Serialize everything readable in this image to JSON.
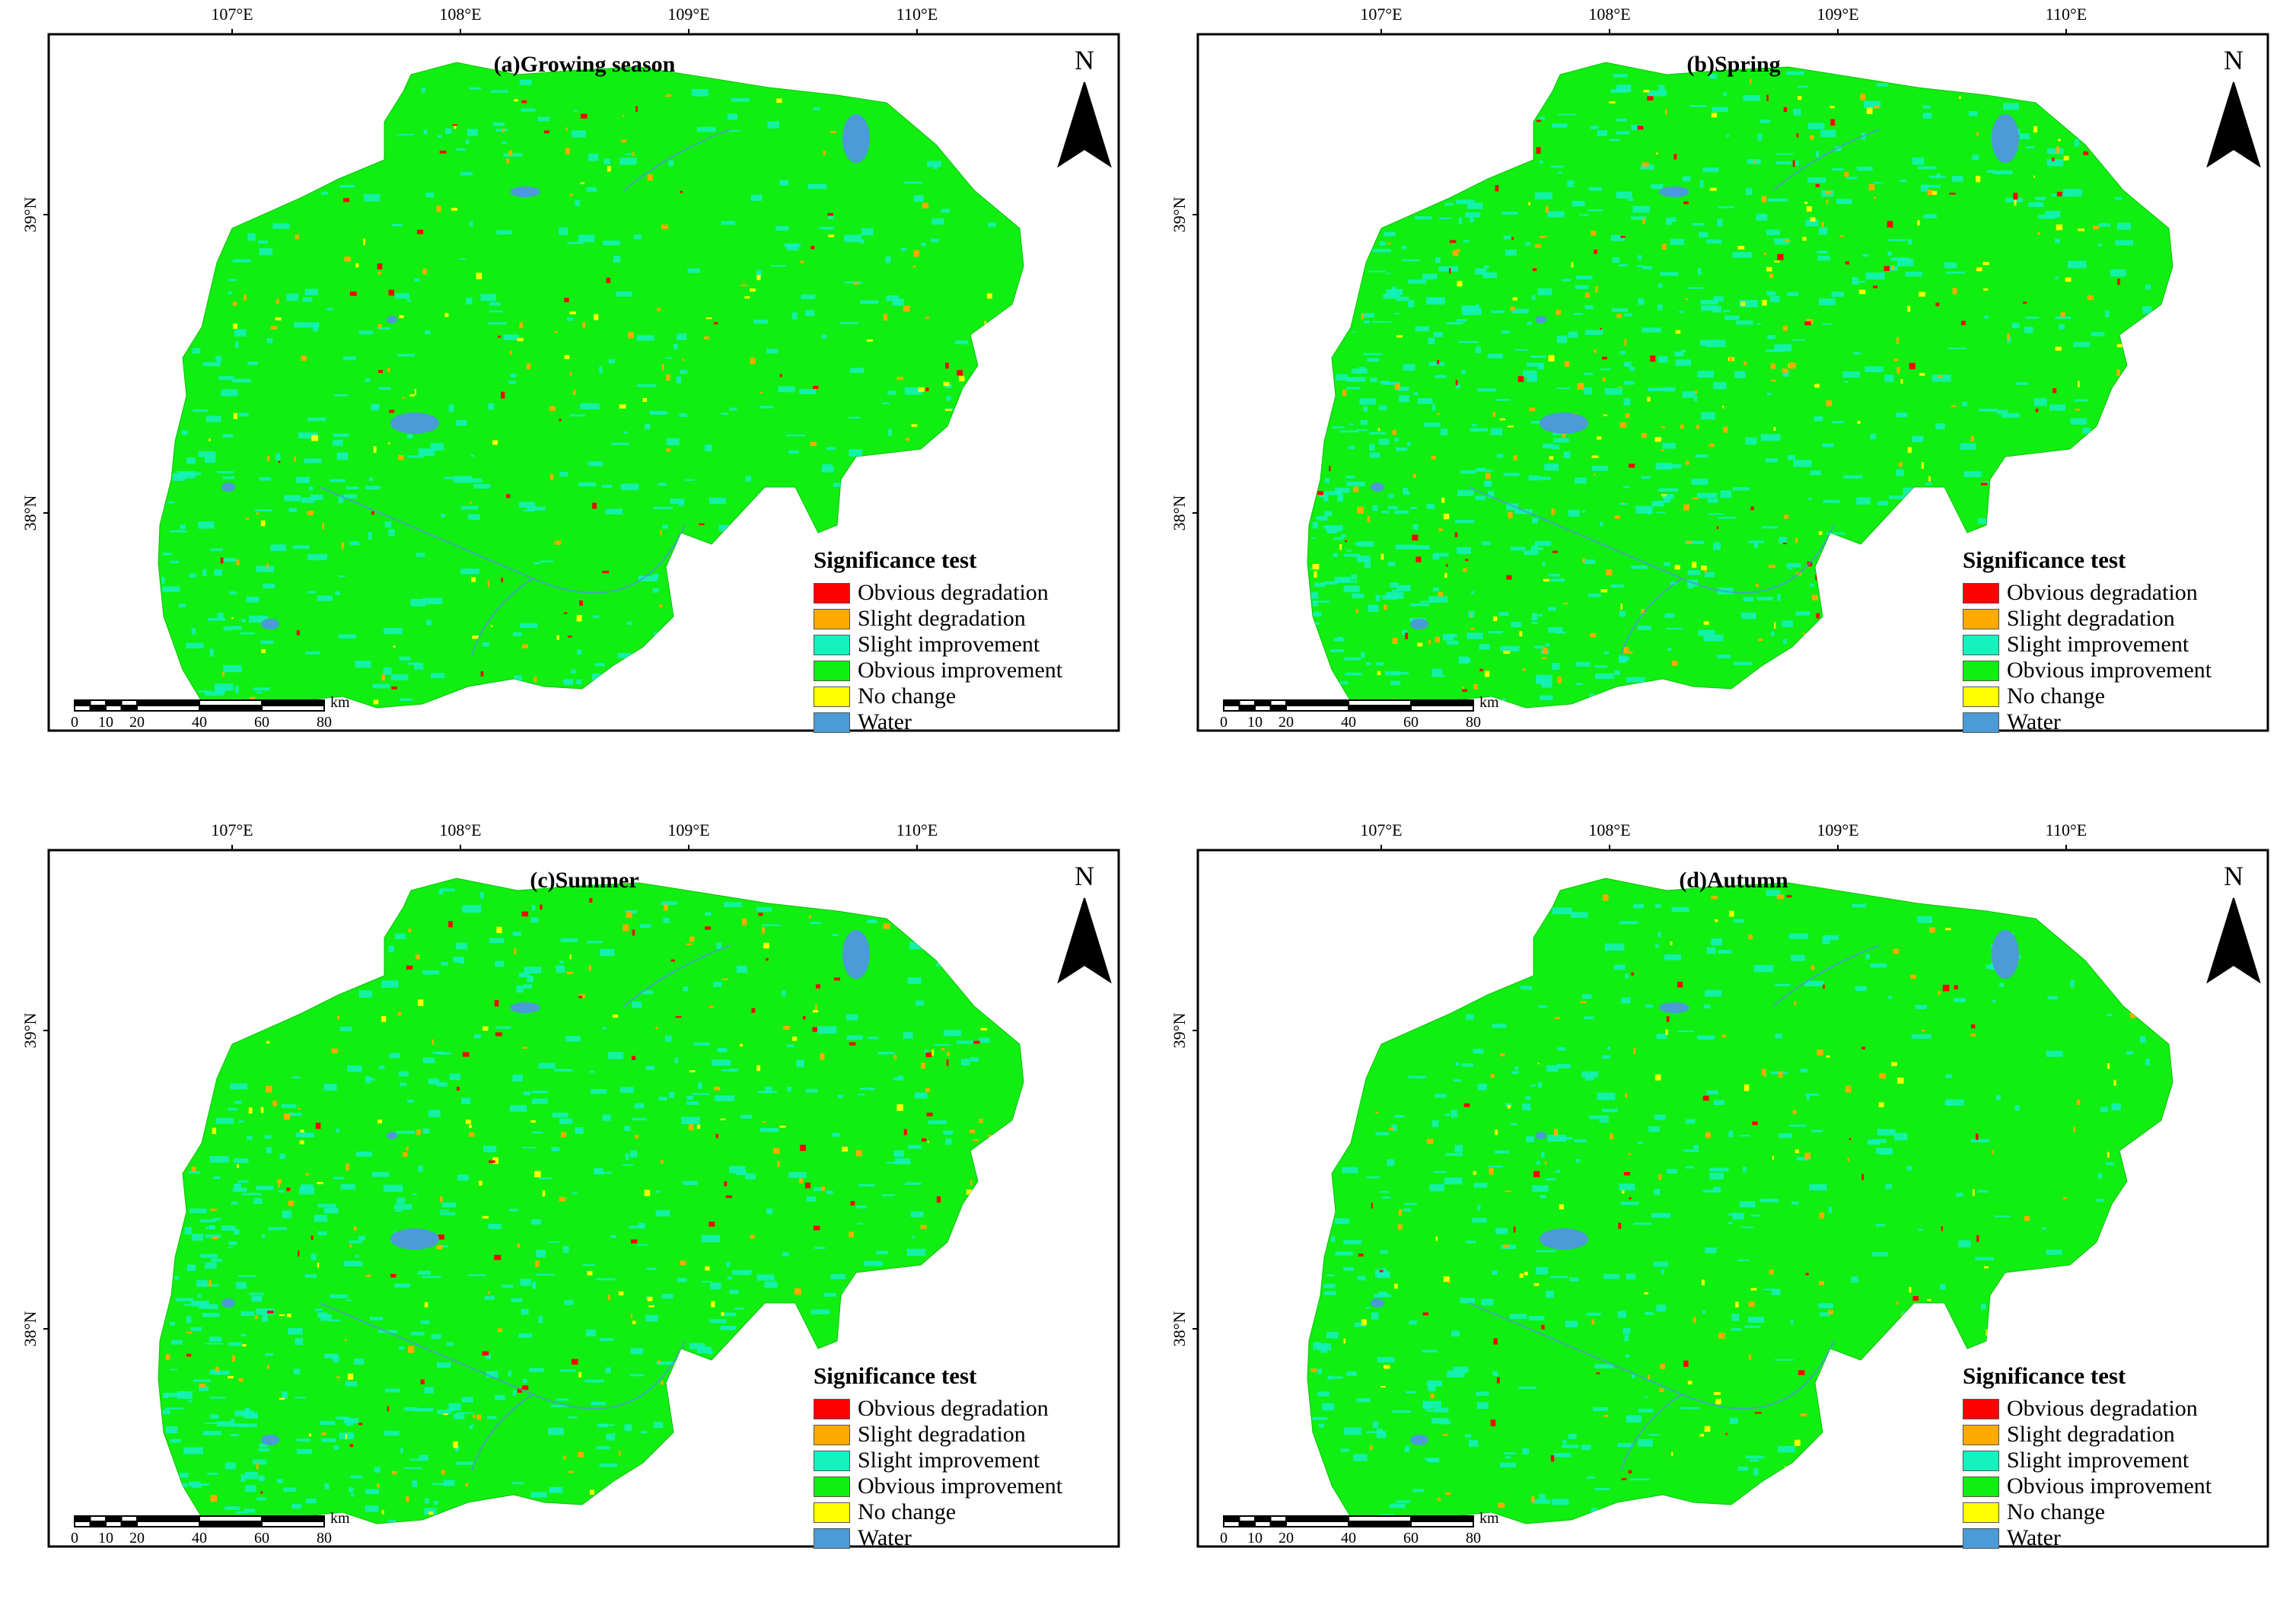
{
  "lon_ticks": [
    {
      "lon": 107,
      "label": "107°E"
    },
    {
      "lon": 108,
      "label": "108°E"
    },
    {
      "lon": 109,
      "label": "109°E"
    },
    {
      "lon": 110,
      "label": "110°E"
    }
  ],
  "lat_ticks": [
    {
      "lat": 39,
      "label": "39°N"
    },
    {
      "lat": 38,
      "label": "38°N"
    }
  ],
  "north_label": "N",
  "legend": {
    "title": "Significance test",
    "items": [
      {
        "label": "Obvious degradation",
        "color": "#ff0000"
      },
      {
        "label": "Slight degradation",
        "color": "#ffaa00"
      },
      {
        "label": "Slight improvement",
        "color": "#14f2c0"
      },
      {
        "label": "Obvious improvement",
        "color": "#11ee11"
      },
      {
        "label": "No change",
        "color": "#ffff00"
      },
      {
        "label": "Water",
        "color": "#4a9bd6"
      }
    ]
  },
  "scale_bar": {
    "ticks": [
      "0",
      "10",
      "20",
      "40",
      "60",
      "80"
    ],
    "unit": "km"
  },
  "panels": [
    {
      "id": "a",
      "title": "(a)Growing season"
    },
    {
      "id": "b",
      "title": "(b)Spring"
    },
    {
      "id": "c",
      "title": "(c)Summer"
    },
    {
      "id": "d",
      "title": "(d)Autumn"
    }
  ],
  "colors": {
    "main_green": "#11ee11",
    "cyan_patch": "#14f2c0",
    "water": "#4a9bd6",
    "frame": "#000000"
  }
}
